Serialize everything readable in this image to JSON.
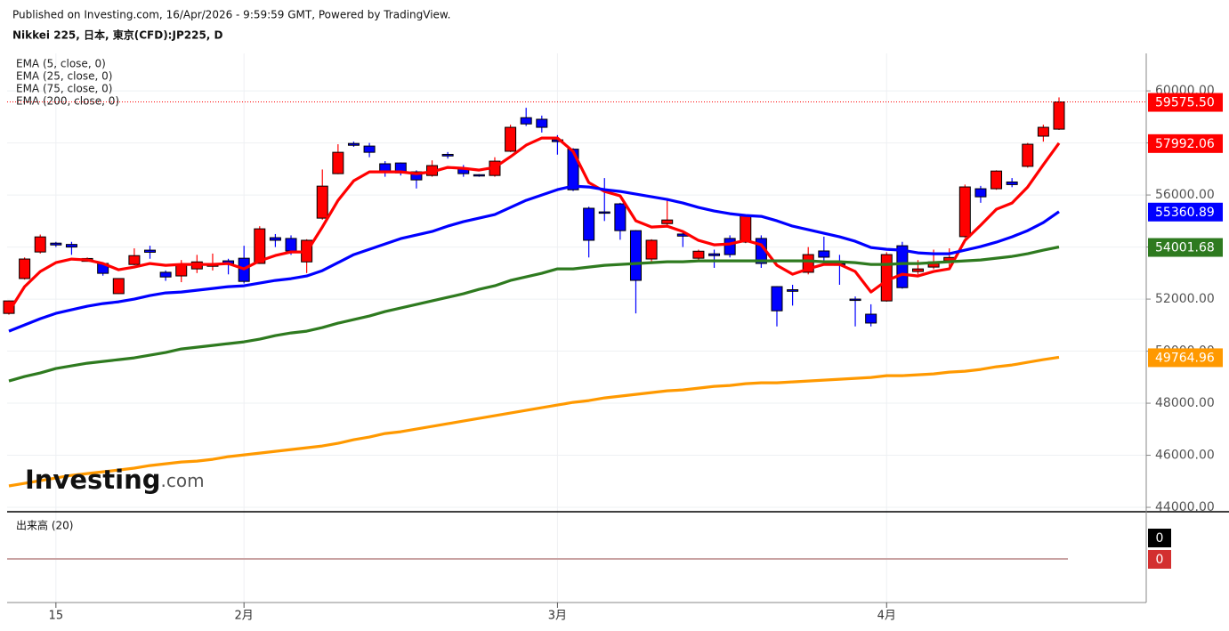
{
  "chart_data": {
    "type": "candlestick",
    "published": "Published on Investing.com, 16/Apr/2026 - 9:59:59 GMT, Powered by TradingView.",
    "title": "Nikkei 225, 日本, 東京(CFD):JP225, D",
    "watermark": {
      "main": "Investing",
      "suffix": ".com"
    },
    "categories": [
      null,
      null,
      null,
      "15",
      null,
      null,
      null,
      null,
      null,
      null,
      null,
      null,
      null,
      null,
      null,
      "2月",
      null,
      null,
      null,
      null,
      null,
      null,
      null,
      null,
      null,
      null,
      null,
      null,
      null,
      null,
      null,
      null,
      null,
      null,
      null,
      "3月",
      null,
      null,
      null,
      null,
      null,
      null,
      null,
      null,
      null,
      null,
      null,
      null,
      null,
      null,
      null,
      null,
      null,
      null,
      null,
      null,
      "4月",
      null,
      null,
      null,
      null,
      null,
      null,
      null,
      null,
      null,
      null,
      null
    ],
    "up_color": "#ff0000",
    "down_color": "#0000ff",
    "open": [
      51450,
      52790,
      53810,
      54150,
      54100,
      53450,
      53370,
      52210,
      53330,
      53880,
      53030,
      52890,
      53160,
      53260,
      53470,
      53570,
      53370,
      54360,
      54330,
      53430,
      55110,
      56820,
      57980,
      57880,
      57200,
      57230,
      56890,
      56750,
      57560,
      57030,
      56780,
      56750,
      57680,
      58970,
      58910,
      58120,
      57760,
      55490,
      55350,
      55660,
      54630,
      53540,
      54900,
      54500,
      53570,
      53740,
      54330,
      54190,
      54330,
      52480,
      52360,
      53030,
      53850,
      53360,
      52000,
      51420,
      51930,
      54050,
      53060,
      53230,
      53470,
      54400,
      56240,
      56240,
      56500,
      57100,
      58260,
      58530
    ],
    "high": [
      51950,
      53600,
      54480,
      54200,
      54200,
      53600,
      53400,
      52800,
      53950,
      54050,
      53100,
      53500,
      53700,
      53750,
      53550,
      54050,
      54800,
      54500,
      54450,
      54300,
      56980,
      57950,
      58050,
      58000,
      57300,
      57250,
      56950,
      57330,
      57650,
      57150,
      56800,
      57450,
      58700,
      59350,
      59050,
      58300,
      57800,
      55550,
      56650,
      55700,
      54650,
      54300,
      55800,
      54550,
      53900,
      53900,
      54450,
      55250,
      54450,
      52500,
      52550,
      54000,
      54400,
      53700,
      52100,
      51800,
      53800,
      54200,
      53500,
      53900,
      53950,
      56400,
      56350,
      56950,
      56650,
      58000,
      58700,
      59750
    ],
    "low": [
      51400,
      52750,
      53750,
      54000,
      53700,
      53450,
      52900,
      52200,
      53300,
      53550,
      52700,
      52650,
      53000,
      53100,
      52950,
      52600,
      53350,
      54000,
      53700,
      53000,
      55050,
      56800,
      57850,
      57450,
      56700,
      56750,
      56250,
      56700,
      57400,
      56700,
      56700,
      56700,
      57650,
      58650,
      58400,
      57550,
      56150,
      53600,
      55000,
      54280,
      51450,
      53400,
      54800,
      54000,
      53450,
      53200,
      53600,
      54150,
      53200,
      50950,
      51750,
      52950,
      53400,
      52550,
      50950,
      50950,
      51900,
      52400,
      52950,
      53150,
      53250,
      54350,
      55700,
      56200,
      56300,
      57050,
      58050,
      58500
    ],
    "close": [
      51930,
      53540,
      54390,
      54080,
      54000,
      53560,
      52990,
      52790,
      53670,
      53800,
      52850,
      53330,
      53430,
      53370,
      53370,
      52680,
      54700,
      54260,
      53850,
      54260,
      56340,
      57640,
      57910,
      57640,
      56890,
      56850,
      56580,
      57130,
      57500,
      56820,
      56750,
      57300,
      58600,
      58730,
      58600,
      58050,
      56200,
      54260,
      55300,
      54630,
      52720,
      54260,
      55040,
      54420,
      53840,
      53670,
      53710,
      55210,
      53370,
      51550,
      52300,
      53710,
      53610,
      53300,
      51950,
      51080,
      53710,
      52440,
      53160,
      53430,
      53600,
      56310,
      55930,
      56920,
      56400,
      57950,
      58600,
      59575.5
    ],
    "close_label": "59575.50",
    "series": [
      {
        "name": "EMA (5, close, 0)",
        "color": "#ff0000",
        "last_label": "57992.06",
        "values": [
          51521,
          52478,
          53059,
          53401,
          53538,
          53504,
          53367,
          53128,
          53230,
          53367,
          53299,
          53333,
          53333,
          53333,
          53367,
          53162,
          53470,
          53675,
          53812,
          53812,
          54769,
          55795,
          56547,
          56889,
          56889,
          56889,
          56820,
          56889,
          57060,
          57025,
          56957,
          57060,
          57470,
          57914,
          58188,
          58188,
          57675,
          56478,
          56137,
          55966,
          55008,
          54769,
          54803,
          54598,
          54256,
          54085,
          54119,
          54256,
          54085,
          53299,
          52957,
          53162,
          53333,
          53333,
          53059,
          52273,
          52718,
          52957,
          52888,
          53059,
          53162,
          54256,
          54837,
          55453,
          55692,
          56308,
          57162,
          57992.06
        ]
      },
      {
        "name": "EMA (25, close, 0)",
        "color": "#0000ff",
        "last_label": "55360.89",
        "values": [
          50769,
          51008,
          51247,
          51452,
          51589,
          51726,
          51829,
          51897,
          52000,
          52136,
          52239,
          52273,
          52341,
          52410,
          52478,
          52512,
          52615,
          52718,
          52786,
          52888,
          53094,
          53401,
          53709,
          53914,
          54119,
          54324,
          54461,
          54598,
          54803,
          54974,
          55111,
          55248,
          55521,
          55795,
          56000,
          56205,
          56342,
          56307,
          56205,
          56137,
          56034,
          55931,
          55829,
          55692,
          55521,
          55384,
          55282,
          55213,
          55179,
          55008,
          54803,
          54666,
          54530,
          54393,
          54222,
          53983,
          53914,
          53880,
          53777,
          53743,
          53743,
          53880,
          54017,
          54188,
          54393,
          54632,
          54940,
          55360.89
        ]
      },
      {
        "name": "EMA (75, close, 0)",
        "color": "#2e7a1f",
        "last_label": "54001.68",
        "values": [
          48854,
          49025,
          49162,
          49333,
          49435,
          49538,
          49606,
          49675,
          49743,
          49846,
          49948,
          50085,
          50153,
          50222,
          50290,
          50358,
          50461,
          50598,
          50700,
          50769,
          50905,
          51076,
          51213,
          51350,
          51521,
          51658,
          51794,
          51931,
          52068,
          52205,
          52376,
          52512,
          52718,
          52854,
          52991,
          53162,
          53162,
          53230,
          53299,
          53333,
          53367,
          53401,
          53436,
          53436,
          53470,
          53470,
          53470,
          53470,
          53470,
          53470,
          53470,
          53470,
          53436,
          53436,
          53401,
          53333,
          53333,
          53367,
          53367,
          53401,
          53436,
          53470,
          53504,
          53572,
          53641,
          53743,
          53880,
          54001.68
        ]
      },
      {
        "name": "EMA (200, close, 0)",
        "color": "#ff9900",
        "last_label": "49764.96",
        "values": [
          44820,
          44922,
          45025,
          45127,
          45230,
          45298,
          45367,
          45435,
          45504,
          45606,
          45674,
          45743,
          45777,
          45845,
          45948,
          46016,
          46085,
          46153,
          46221,
          46290,
          46358,
          46461,
          46598,
          46700,
          46837,
          46905,
          47008,
          47110,
          47213,
          47316,
          47418,
          47521,
          47623,
          47726,
          47828,
          47931,
          48033,
          48102,
          48204,
          48273,
          48341,
          48410,
          48478,
          48512,
          48581,
          48649,
          48683,
          48751,
          48786,
          48786,
          48820,
          48854,
          48888,
          48922,
          48957,
          48991,
          49059,
          49059,
          49093,
          49128,
          49196,
          49230,
          49299,
          49401,
          49470,
          49572,
          49675,
          49764.96
        ]
      }
    ],
    "ylim": [
      43830,
      61440
    ],
    "yticks": [
      {
        "value": 44000,
        "label": "44000.00"
      },
      {
        "value": 46000,
        "label": "46000.00"
      },
      {
        "value": 48000,
        "label": "48000.00"
      },
      {
        "value": 50000,
        "label": "50000.00"
      },
      {
        "value": 52000,
        "label": "52000.00"
      },
      {
        "value": 54000,
        "label": "54000.00"
      },
      {
        "value": 56000,
        "label": "56000.00"
      },
      {
        "value": 58000,
        "label": "58000.00"
      },
      {
        "value": 60000,
        "label": "60000.00"
      }
    ],
    "grid": true,
    "volume": {
      "title": "出来高 (20)",
      "last_values": [
        0,
        0
      ],
      "colors": [
        "#000000",
        "#d32f2f"
      ]
    }
  }
}
